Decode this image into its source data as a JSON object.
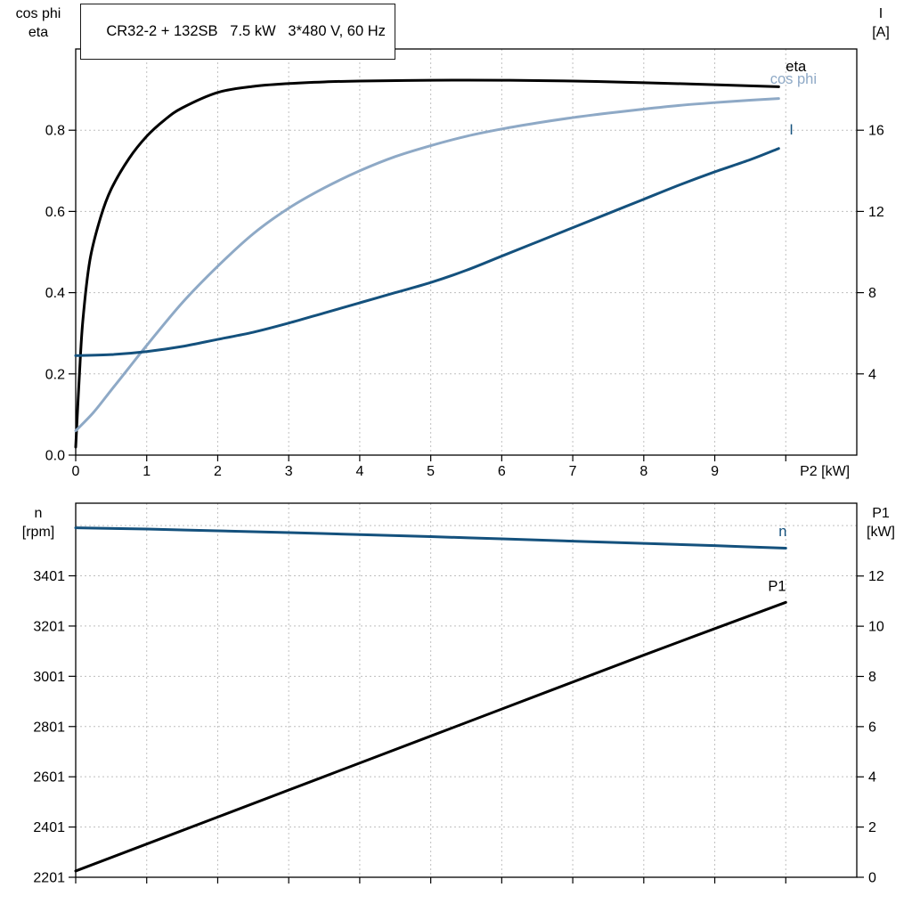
{
  "colors": {
    "background": "#ffffff",
    "frame": "#000000",
    "grid": "#bfbfbf",
    "black_curve": "#000000",
    "light_blue_curve": "#8ea9c6",
    "dark_blue_curve": "#14517d"
  },
  "chart_data": [
    {
      "type": "line",
      "title": "CR32-2 + 132SB   7.5 kW   3*480 V, 60 Hz",
      "x_axis": {
        "label": "P2 [kW]",
        "range": [
          0,
          11
        ],
        "ticks": [
          0,
          1,
          2,
          3,
          4,
          5,
          6,
          7,
          8,
          9,
          10
        ],
        "tick_labels": [
          "0",
          "1",
          "2",
          "3",
          "4",
          "5",
          "6",
          "7",
          "8",
          "9",
          ""
        ],
        "grid": [
          1,
          2,
          3,
          4,
          5,
          6,
          7,
          8,
          9,
          10
        ],
        "end_label": "P2 [kW]",
        "end_label_x": 10.55
      },
      "left_axis": {
        "label_lines": [
          "cos phi",
          "eta"
        ],
        "range": [
          0,
          1.0
        ],
        "ticks": [
          0,
          0.2,
          0.4,
          0.6,
          0.8
        ],
        "tick_labels": [
          "0.0",
          "0.2",
          "0.4",
          "0.6",
          "0.8"
        ],
        "grid": [
          0.2,
          0.4,
          0.6,
          0.8
        ]
      },
      "right_axis": {
        "label_lines": [
          "I",
          "[A]"
        ],
        "range": [
          0,
          20
        ],
        "ticks": [
          4,
          8,
          12,
          16
        ],
        "tick_labels": [
          "4",
          "8",
          "12",
          "16"
        ]
      },
      "series": [
        {
          "name": "eta",
          "axis": "left",
          "color": "#000000",
          "label": "eta",
          "label_pos": [
            10.0,
            0.945
          ],
          "points": [
            [
              0,
              0.02
            ],
            [
              0.05,
              0.19
            ],
            [
              0.1,
              0.33
            ],
            [
              0.2,
              0.48
            ],
            [
              0.35,
              0.585
            ],
            [
              0.5,
              0.655
            ],
            [
              0.75,
              0.73
            ],
            [
              1,
              0.785
            ],
            [
              1.25,
              0.825
            ],
            [
              1.5,
              0.855
            ],
            [
              2,
              0.893
            ],
            [
              2.5,
              0.908
            ],
            [
              3,
              0.915
            ],
            [
              3.5,
              0.919
            ],
            [
              4,
              0.921
            ],
            [
              5,
              0.923
            ],
            [
              6,
              0.923
            ],
            [
              7,
              0.921
            ],
            [
              8,
              0.917
            ],
            [
              9,
              0.912
            ],
            [
              9.9,
              0.907
            ]
          ]
        },
        {
          "name": "cos phi",
          "axis": "left",
          "color": "#8ea9c6",
          "label": "cos phi",
          "label_pos": [
            9.78,
            0.915
          ],
          "points": [
            [
              0,
              0.06
            ],
            [
              0.25,
              0.105
            ],
            [
              0.5,
              0.16
            ],
            [
              0.75,
              0.215
            ],
            [
              1,
              0.27
            ],
            [
              1.5,
              0.375
            ],
            [
              2,
              0.465
            ],
            [
              2.5,
              0.545
            ],
            [
              3,
              0.608
            ],
            [
              3.5,
              0.658
            ],
            [
              4,
              0.7
            ],
            [
              4.5,
              0.735
            ],
            [
              5,
              0.762
            ],
            [
              5.5,
              0.785
            ],
            [
              6,
              0.803
            ],
            [
              6.5,
              0.818
            ],
            [
              7,
              0.831
            ],
            [
              7.5,
              0.842
            ],
            [
              8,
              0.852
            ],
            [
              8.5,
              0.861
            ],
            [
              9,
              0.868
            ],
            [
              9.5,
              0.874
            ],
            [
              9.9,
              0.878
            ]
          ]
        },
        {
          "name": "I",
          "axis": "right",
          "color": "#14517d",
          "label": "I",
          "label_pos": [
            10.05,
            15.8
          ],
          "points": [
            [
              0,
              4.9
            ],
            [
              0.5,
              4.95
            ],
            [
              1,
              5.1
            ],
            [
              1.5,
              5.35
            ],
            [
              2,
              5.7
            ],
            [
              2.5,
              6.05
            ],
            [
              3,
              6.5
            ],
            [
              3.5,
              7.0
            ],
            [
              4,
              7.5
            ],
            [
              4.5,
              8.0
            ],
            [
              5,
              8.5
            ],
            [
              5.5,
              9.1
            ],
            [
              6,
              9.8
            ],
            [
              6.5,
              10.5
            ],
            [
              7,
              11.2
            ],
            [
              7.5,
              11.9
            ],
            [
              8,
              12.6
            ],
            [
              8.5,
              13.3
            ],
            [
              9,
              13.95
            ],
            [
              9.5,
              14.55
            ],
            [
              9.9,
              15.1
            ]
          ]
        }
      ]
    },
    {
      "type": "line",
      "title": "",
      "x_axis": {
        "label": "",
        "range": [
          0,
          11
        ],
        "ticks": [
          0,
          1,
          2,
          3,
          4,
          5,
          6,
          7,
          8,
          9,
          10
        ],
        "tick_labels": [],
        "grid": [
          1,
          2,
          3,
          4,
          5,
          6,
          7,
          8,
          9,
          10
        ],
        "end_label": "",
        "end_label_x": 0
      },
      "left_axis": {
        "label_lines": [
          "n",
          "[rpm]"
        ],
        "range": [
          2201,
          3690
        ],
        "ticks": [
          2201,
          2401,
          2601,
          2801,
          3001,
          3201,
          3401
        ],
        "tick_labels": [
          "2201",
          "2401",
          "2601",
          "2801",
          "3001",
          "3201",
          "3401"
        ],
        "grid": [
          2401,
          2601,
          2801,
          3001,
          3201,
          3401,
          3601
        ]
      },
      "right_axis": {
        "label_lines": [
          "P1",
          "[kW]"
        ],
        "range": [
          0,
          14.9
        ],
        "ticks": [
          0,
          2,
          4,
          6,
          8,
          10,
          12
        ],
        "tick_labels": [
          "0",
          "2",
          "4",
          "6",
          "8",
          "10",
          "12"
        ]
      },
      "series": [
        {
          "name": "n",
          "axis": "left",
          "color": "#14517d",
          "label": "n",
          "label_pos": [
            9.9,
            3558
          ],
          "points": [
            [
              0,
              3592
            ],
            [
              1,
              3587
            ],
            [
              2,
              3580
            ],
            [
              3,
              3573
            ],
            [
              4,
              3565
            ],
            [
              5,
              3557
            ],
            [
              6,
              3548
            ],
            [
              7,
              3539
            ],
            [
              8,
              3530
            ],
            [
              9,
              3521
            ],
            [
              10,
              3511
            ]
          ]
        },
        {
          "name": "P1",
          "axis": "right",
          "color": "#000000",
          "label": "P1",
          "label_pos": [
            9.75,
            11.4
          ],
          "points": [
            [
              0,
              0.25
            ],
            [
              2,
              2.4
            ],
            [
              4,
              4.55
            ],
            [
              6,
              6.7
            ],
            [
              8,
              8.85
            ],
            [
              10,
              10.95
            ]
          ]
        }
      ]
    }
  ]
}
